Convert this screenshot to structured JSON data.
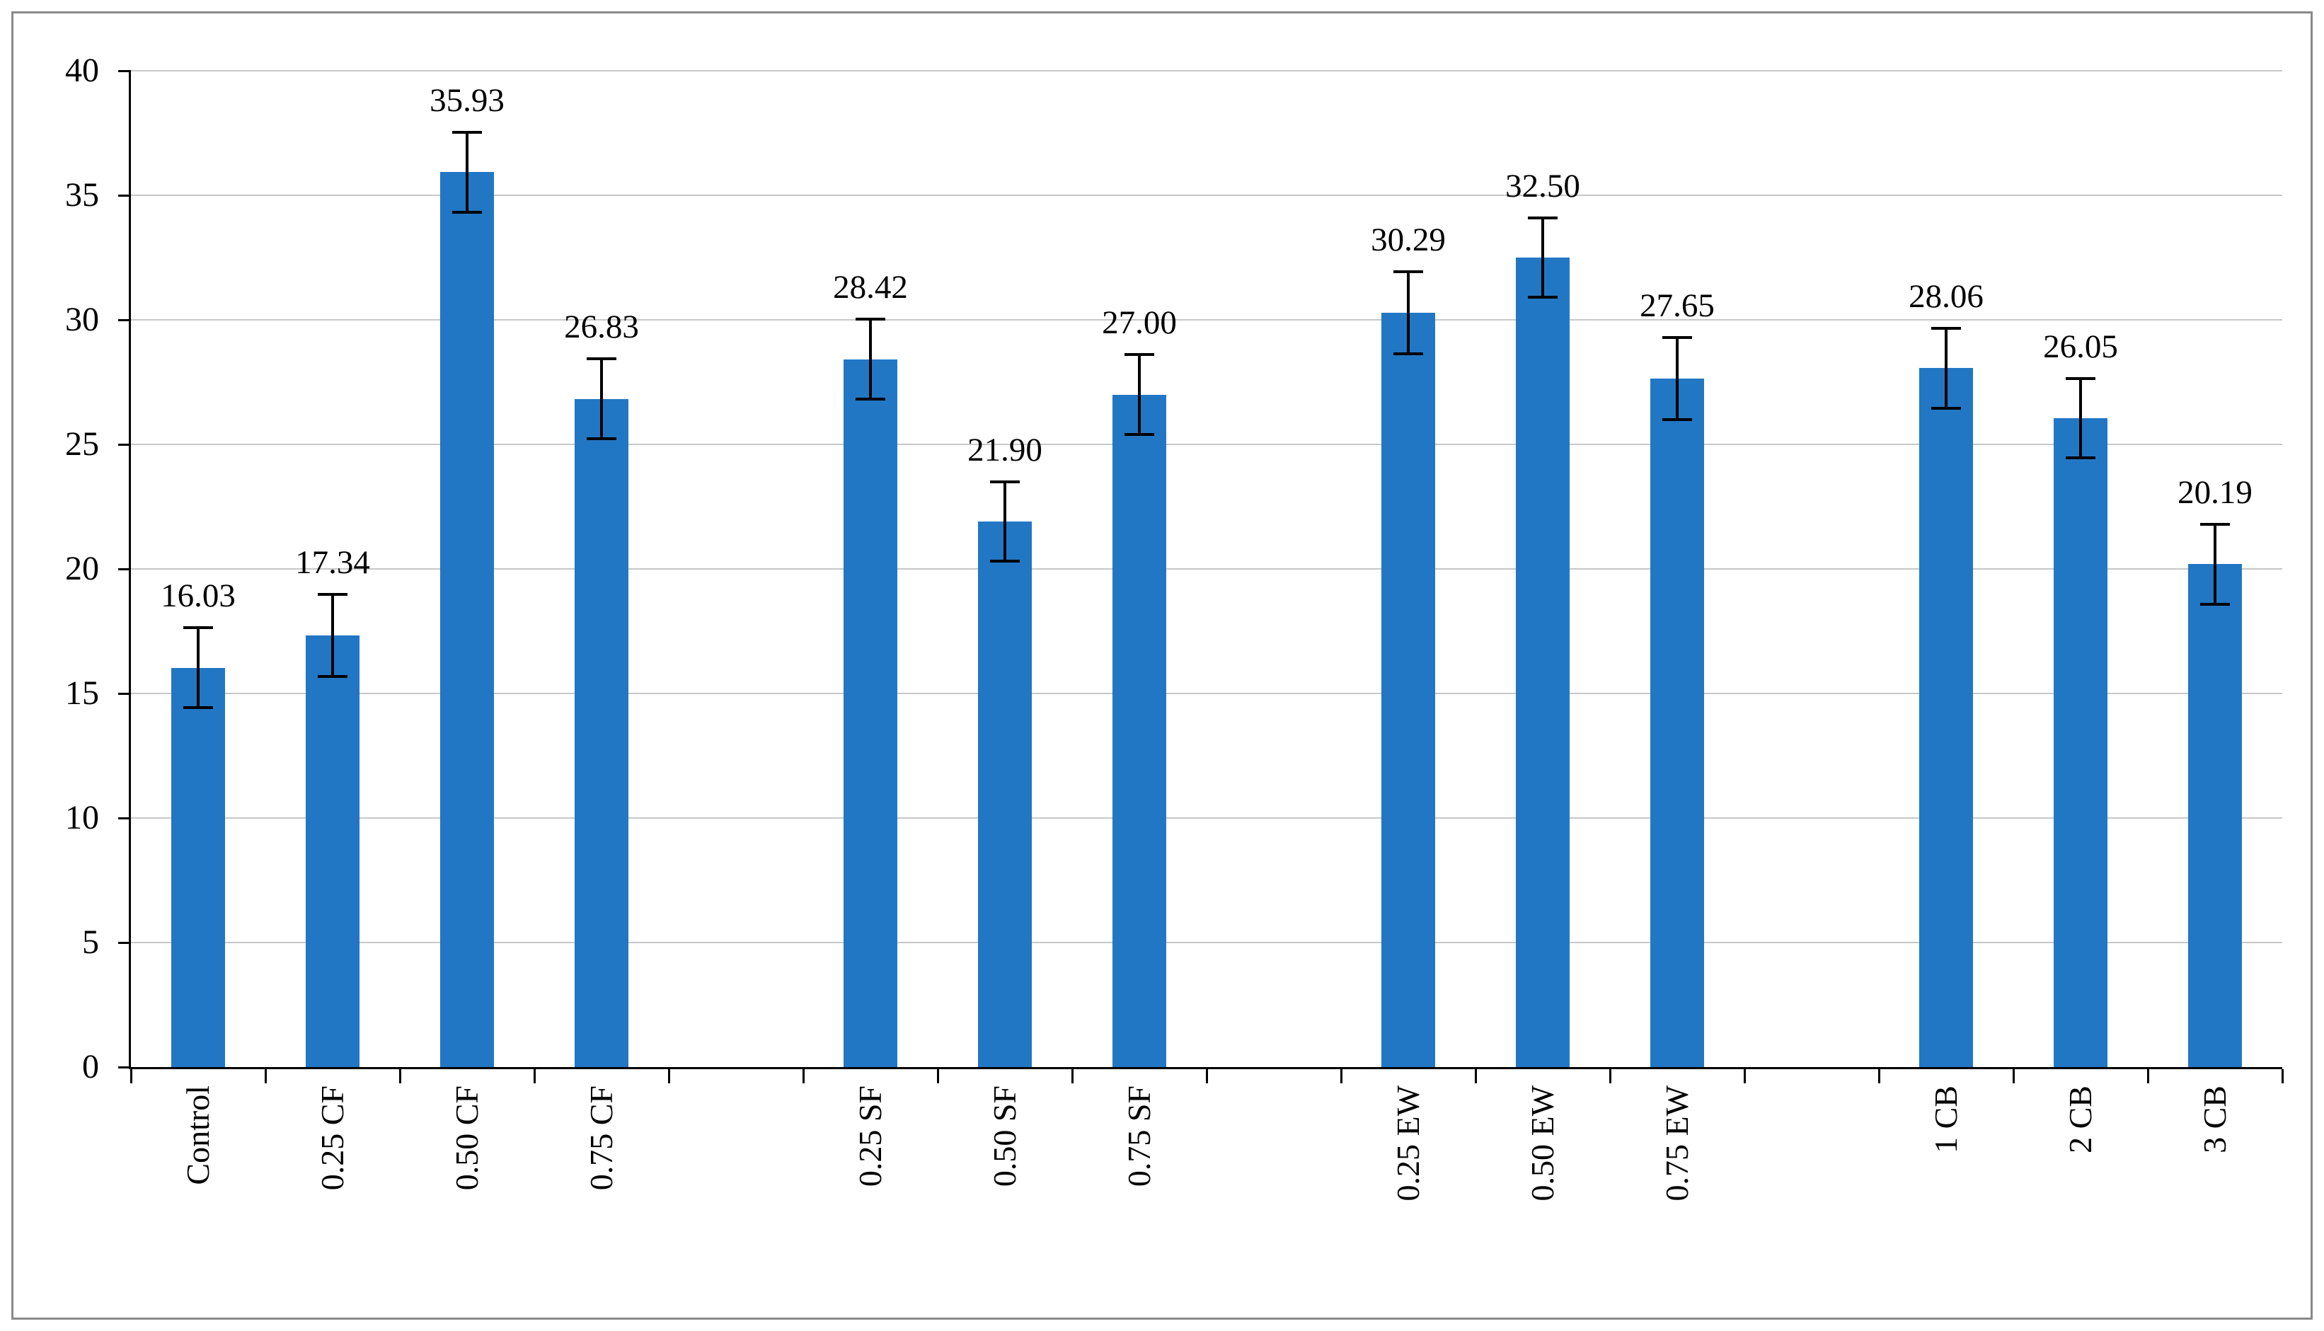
{
  "page": {
    "background": "#FFFFFF"
  },
  "chart_data": {
    "type": "bar",
    "title": "",
    "xlabel": "",
    "ylabel": "",
    "ylim": [
      0,
      40
    ],
    "yticks": [
      0,
      5,
      10,
      15,
      20,
      25,
      30,
      35,
      40
    ],
    "ytick_labels": [
      "0",
      "5",
      "10",
      "15",
      "20",
      "25",
      "30",
      "35",
      "40"
    ],
    "grid": true,
    "legend": false,
    "bar_color": "#2277C4",
    "gridline_color": "#C8C8C8",
    "axis_color": "#000000",
    "error_bar_color": "#000000",
    "frame_border_color": "#8A8A8A",
    "categories": [
      "Control",
      "0.25 CF",
      "0.50 CF",
      "0.75 CF",
      "0.25 SF",
      "0.50 SF",
      "0.75 SF",
      "0.25 EW",
      "0.50 EW",
      "0.75 EW",
      "1 CB",
      "2 CB",
      "3 CB"
    ],
    "values": [
      16.03,
      17.34,
      35.93,
      26.83,
      28.42,
      21.9,
      27.0,
      30.29,
      32.5,
      27.65,
      28.06,
      26.05,
      20.19
    ],
    "value_labels": [
      "16.03",
      "17.34",
      "35.93",
      "26.83",
      "28.42",
      "21.90",
      "27.00",
      "30.29",
      "32.50",
      "27.65",
      "28.06",
      "26.05",
      "20.19"
    ],
    "errors": [
      1.6,
      1.65,
      1.6,
      1.6,
      1.6,
      1.6,
      1.6,
      1.65,
      1.6,
      1.65,
      1.6,
      1.6,
      1.6
    ],
    "group_breaks_after": [
      3,
      6,
      9
    ]
  }
}
